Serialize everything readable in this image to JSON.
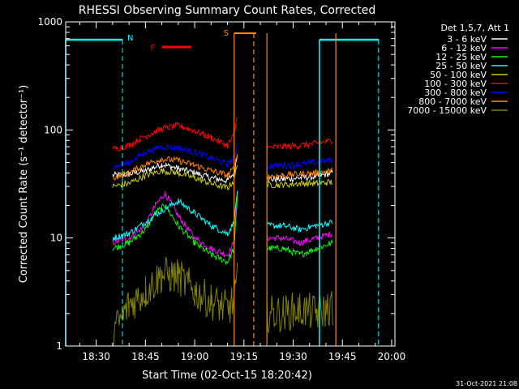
{
  "chart_data": {
    "type": "line",
    "title": "RHESSI Observing Summary Count Rates, Corrected",
    "xlabel": "Start Time (02-Oct-15 18:20:42)",
    "ylabel": "Corrected Count Rate (s⁻¹ detector⁻¹)",
    "y_scale": "log",
    "ylim": [
      1,
      1000
    ],
    "xlim": [
      "18:20:42",
      "20:01"
    ],
    "x_ticks": [
      "18:30",
      "18:45",
      "19:00",
      "19:15",
      "19:30",
      "19:45",
      "20:00"
    ],
    "y_ticks": [
      "1",
      "10",
      "100",
      "1000"
    ],
    "grid": false,
    "legend": {
      "title": "Det 1,5,7, Att 1",
      "position": "right"
    },
    "series": [
      {
        "name": "3 - 6 keV",
        "color": "#ffffff",
        "segments": [
          {
            "x": [
              "18:35",
              "18:40",
              "18:45",
              "18:50",
              "18:55",
              "19:00",
              "19:05",
              "19:10",
              "19:12",
              "19:13"
            ],
            "y": [
              38,
              39,
              42,
              48,
              44,
              40,
              36,
              34,
              40,
              60
            ]
          },
          {
            "x": [
              "19:22",
              "19:27",
              "19:32",
              "19:37",
              "19:42"
            ],
            "y": [
              35,
              35,
              36,
              37,
              40
            ]
          }
        ]
      },
      {
        "name": "6 - 12 keV",
        "color": "#ff00ff",
        "segments": [
          {
            "x": [
              "18:35",
              "18:40",
              "18:45",
              "18:48",
              "18:51",
              "18:55",
              "19:00",
              "19:05",
              "19:10",
              "19:12",
              "19:13"
            ],
            "y": [
              9,
              10,
              13,
              20,
              26,
              16,
              10,
              8,
              7,
              9,
              28
            ]
          },
          {
            "x": [
              "19:22",
              "19:27",
              "19:32",
              "19:37",
              "19:42"
            ],
            "y": [
              10,
              10,
              9,
              10,
              11
            ]
          }
        ]
      },
      {
        "name": "12 - 25 keV",
        "color": "#00ff00",
        "segments": [
          {
            "x": [
              "18:35",
              "18:40",
              "18:45",
              "18:48",
              "18:51",
              "18:55",
              "19:00",
              "19:05",
              "19:10",
              "19:12",
              "19:13"
            ],
            "y": [
              8,
              9,
              12,
              17,
              20,
              13,
              9,
              7,
              6,
              8,
              25
            ]
          },
          {
            "x": [
              "19:22",
              "19:27",
              "19:32",
              "19:37",
              "19:42"
            ],
            "y": [
              8,
              8,
              7,
              8,
              9
            ]
          }
        ]
      },
      {
        "name": "25 - 50 keV",
        "color": "#00ffff",
        "segments": [
          {
            "x": [
              "18:35",
              "18:40",
              "18:45",
              "18:50",
              "18:55",
              "19:00",
              "19:05",
              "19:10",
              "19:12",
              "19:13"
            ],
            "y": [
              10,
              11,
              14,
              18,
              22,
              17,
              13,
              11,
              14,
              28
            ]
          },
          {
            "x": [
              "19:22",
              "19:27",
              "19:32",
              "19:37",
              "19:42"
            ],
            "y": [
              13,
              13,
              12,
              13,
              14
            ]
          }
        ]
      },
      {
        "name": "50 - 100 keV",
        "color": "#cccc00",
        "segments": [
          {
            "x": [
              "18:35",
              "18:40",
              "18:45",
              "18:50",
              "18:55",
              "19:00",
              "19:05",
              "19:10",
              "19:12",
              "19:13"
            ],
            "y": [
              30,
              32,
              38,
              42,
              40,
              36,
              32,
              29,
              34,
              50
            ]
          },
          {
            "x": [
              "19:22",
              "19:27",
              "19:32",
              "19:37",
              "19:42"
            ],
            "y": [
              31,
              31,
              32,
              32,
              33
            ]
          }
        ]
      },
      {
        "name": "100 - 300 keV",
        "color": "#ff0000",
        "segments": [
          {
            "x": [
              "18:35",
              "18:40",
              "18:45",
              "18:50",
              "18:55",
              "19:00",
              "19:05",
              "19:10",
              "19:12",
              "19:13"
            ],
            "y": [
              66,
              72,
              88,
              102,
              110,
              98,
              85,
              72,
              90,
              140
            ]
          },
          {
            "x": [
              "19:22",
              "19:27",
              "19:32",
              "19:37",
              "19:42"
            ],
            "y": [
              68,
              70,
              72,
              75,
              80
            ]
          }
        ]
      },
      {
        "name": "300 - 800 keV",
        "color": "#0000ff",
        "segments": [
          {
            "x": [
              "18:35",
              "18:40",
              "18:45",
              "18:50",
              "18:55",
              "19:00",
              "19:05",
              "19:10",
              "19:12",
              "19:13"
            ],
            "y": [
              45,
              50,
              62,
              70,
              68,
              62,
              55,
              48,
              55,
              75
            ]
          },
          {
            "x": [
              "19:22",
              "19:27",
              "19:32",
              "19:37",
              "19:42"
            ],
            "y": [
              46,
              47,
              48,
              50,
              53
            ]
          }
        ]
      },
      {
        "name": "800 - 7000 keV",
        "color": "#ff8800",
        "segments": [
          {
            "x": [
              "18:35",
              "18:40",
              "18:45",
              "18:50",
              "18:55",
              "19:00",
              "19:05",
              "19:10",
              "19:12",
              "19:13"
            ],
            "y": [
              36,
              40,
              48,
              54,
              52,
              47,
              42,
              38,
              44,
              60
            ]
          },
          {
            "x": [
              "19:22",
              "19:27",
              "19:32",
              "19:37",
              "19:42"
            ],
            "y": [
              37,
              38,
              39,
              40,
              42
            ]
          }
        ]
      },
      {
        "name": "7000 - 15000 keV",
        "color": "#808000",
        "segments": [
          {
            "x": [
              "18:35",
              "18:40",
              "18:45",
              "18:50",
              "18:55",
              "19:00",
              "19:05",
              "19:10",
              "19:12",
              "19:13"
            ],
            "y": [
              1.3,
              2.4,
              3.2,
              4.6,
              4.4,
              3.2,
              2.6,
              2.2,
              2.6,
              4
            ]
          },
          {
            "x": [
              "19:22",
              "19:27",
              "19:32",
              "19:37",
              "19:42"
            ],
            "y": [
              2,
              2,
              2.2,
              2,
              2.3
            ]
          }
        ]
      }
    ],
    "annotations": {
      "night_label": "N",
      "night_color": "#00ffff",
      "night_spans": [
        [
          "18:20:42",
          "18:38"
        ],
        [
          "19:38",
          "19:56"
        ]
      ],
      "night_markers": [
        "18:38",
        "19:38",
        "19:56"
      ],
      "flare_label": "F",
      "flare_color": "#ff0000",
      "flare_span": [
        "18:50",
        "18:59"
      ],
      "saa_label": "S",
      "saa_color": "#ff8800",
      "saa_span": [
        "19:12",
        "19:18"
      ],
      "saa_markers": [
        "19:12",
        "19:18",
        "19:22",
        "19:43"
      ]
    }
  },
  "footer": {
    "date": "31-Oct-2021 21:08"
  }
}
